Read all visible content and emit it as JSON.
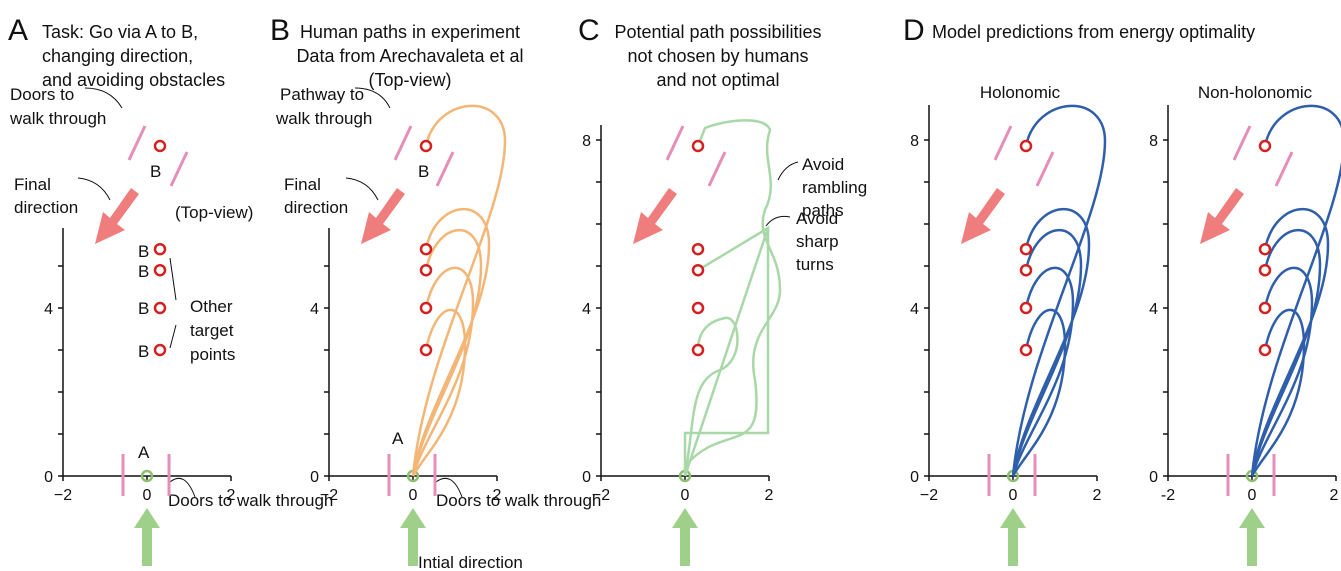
{
  "panels": [
    {
      "letter": "A",
      "title": [
        "Task: Go via A to B,",
        "changing direction,",
        "and avoiding obstacles"
      ],
      "annotations": [
        "Doors to",
        "walk through",
        "B",
        "Final",
        "direction",
        "(Top-view)",
        "B",
        "B",
        "B",
        "B",
        "Other",
        "target",
        "points",
        "A",
        "Doors to walk through"
      ],
      "x_ticks": [
        "−2",
        "0",
        "2"
      ],
      "y_ticks": [
        "0",
        "4"
      ]
    },
    {
      "letter": "B",
      "title": [
        "Human paths in experiment",
        "Data from Arechavaleta et al",
        "(Top-view)"
      ],
      "annotations": [
        "Pathway to",
        "walk through",
        "B",
        "Final",
        "direction",
        "A",
        "Doors to walk through",
        "Intial direction"
      ],
      "x_ticks": [
        "−2",
        "0",
        "2"
      ],
      "y_ticks": [
        "0",
        "4"
      ]
    },
    {
      "letter": "C",
      "title": [
        "Potential path possibilities",
        "not chosen by humans",
        "and not optimal"
      ],
      "annotations": [
        "Avoid",
        "rambling",
        "paths",
        "Avoid",
        "sharp",
        "turns"
      ],
      "x_ticks": [
        "−2",
        "0",
        "2"
      ],
      "y_ticks": [
        "0",
        "4",
        "8"
      ]
    },
    {
      "letter": "D",
      "title": [
        "Model predictions from energy optimality"
      ],
      "subplots": [
        {
          "title": "Holonomic",
          "x_ticks": [
            "−2",
            "0",
            "2"
          ],
          "y_ticks": [
            "0",
            "4",
            "8"
          ]
        },
        {
          "title": "Non-holonomic",
          "x_ticks": [
            "-2",
            "0",
            "2"
          ],
          "y_ticks": [
            "0",
            "4",
            "8"
          ]
        }
      ]
    }
  ]
}
